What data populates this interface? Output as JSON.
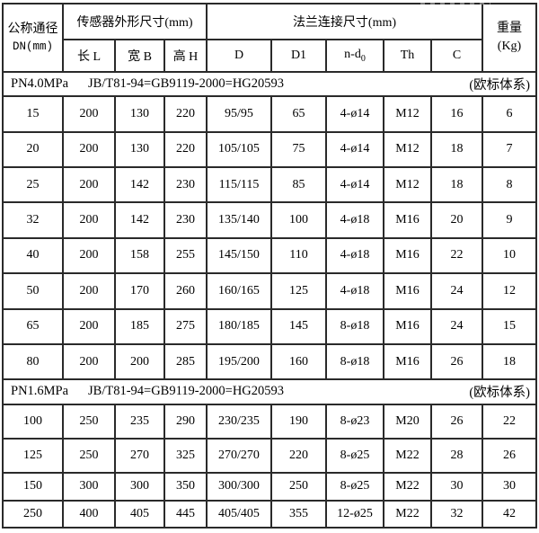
{
  "table": {
    "header": {
      "dn_line1": "公称通径",
      "dn_line2": "DN(mm)",
      "sensor_group": "传感器外形尺寸(mm)",
      "flange_group": "法兰连接尺寸(mm)",
      "weight_line1": "重量",
      "weight_line2": "(Kg)",
      "sub_headers": [
        "长 L",
        "宽 B",
        "高 H",
        "D",
        "D1",
        "n-d",
        "Th",
        "C"
      ],
      "nd0_subscript": "0"
    },
    "sections": [
      {
        "label": "PN4.0MPa",
        "standard": "JB/T81-94=GB9119-2000=HG20593",
        "note": "(欧标体系)",
        "rows": [
          [
            "15",
            "200",
            "130",
            "220",
            "95/95",
            "65",
            "4-ø14",
            "M12",
            "16",
            "6"
          ],
          [
            "20",
            "200",
            "130",
            "220",
            "105/105",
            "75",
            "4-ø14",
            "M12",
            "18",
            "7"
          ],
          [
            "25",
            "200",
            "142",
            "230",
            "115/115",
            "85",
            "4-ø14",
            "M12",
            "18",
            "8"
          ],
          [
            "32",
            "200",
            "142",
            "230",
            "135/140",
            "100",
            "4-ø18",
            "M16",
            "20",
            "9"
          ],
          [
            "40",
            "200",
            "158",
            "255",
            "145/150",
            "110",
            "4-ø18",
            "M16",
            "22",
            "10"
          ],
          [
            "50",
            "200",
            "170",
            "260",
            "160/165",
            "125",
            "4-ø18",
            "M16",
            "24",
            "12"
          ],
          [
            "65",
            "200",
            "185",
            "275",
            "180/185",
            "145",
            "8-ø18",
            "M16",
            "24",
            "15"
          ],
          [
            "80",
            "200",
            "200",
            "285",
            "195/200",
            "160",
            "8-ø18",
            "M16",
            "26",
            "18"
          ]
        ]
      },
      {
        "label": "PN1.6MPa",
        "standard": "JB/T81-94=GB9119-2000=HG20593",
        "note": "(欧标体系)",
        "rows": [
          [
            "100",
            "250",
            "235",
            "290",
            "230/235",
            "190",
            "8-ø23",
            "M20",
            "26",
            "22"
          ],
          [
            "125",
            "250",
            "270",
            "325",
            "270/270",
            "220",
            "8-ø25",
            "M22",
            "28",
            "26"
          ],
          [
            "150",
            "300",
            "300",
            "350",
            "300/300",
            "250",
            "8-ø25",
            "M22",
            "30",
            "30"
          ],
          [
            "250",
            "400",
            "405",
            "445",
            "405/405",
            "355",
            "12-ø25",
            "M22",
            "32",
            "42"
          ]
        ]
      }
    ]
  }
}
